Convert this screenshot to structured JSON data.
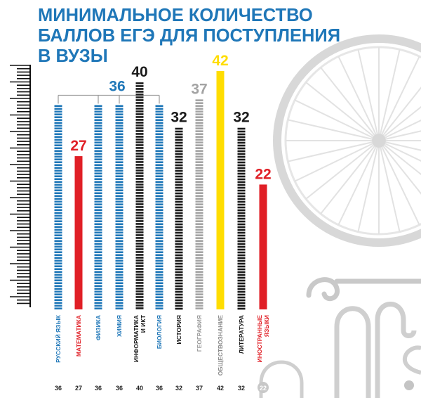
{
  "chart_data": {
    "type": "bar",
    "title_lines": [
      "МИНИМАЛЬНОЕ КОЛИЧЕСТВО",
      "БАЛЛОВ ЕГЭ ДЛЯ ПОСТУПЛЕНИЯ",
      "В ВУЗЫ"
    ],
    "group_label": "36",
    "categories": [
      {
        "name": "РУССКИЙ ЯЗЫК",
        "lines": [
          "РУССКИЙ ЯЗЫК"
        ]
      },
      {
        "name": "МАТЕМАТИКА",
        "lines": [
          "МАТЕМАТИКА"
        ]
      },
      {
        "name": "ФИЗИКА",
        "lines": [
          "ФИЗИКА"
        ]
      },
      {
        "name": "ХИМИЯ",
        "lines": [
          "ХИМИЯ"
        ]
      },
      {
        "name": "ИНФОРМАТИКА И ИКТ",
        "lines": [
          "ИНФОРМАТИКА",
          "И ИКТ"
        ]
      },
      {
        "name": "БИОЛОГИЯ",
        "lines": [
          "БИОЛОГИЯ"
        ]
      },
      {
        "name": "ИСТОРИЯ",
        "lines": [
          "ИСТОРИЯ"
        ]
      },
      {
        "name": "ГЕОГРАФИЯ",
        "lines": [
          "ГЕОГРАФИЯ"
        ]
      },
      {
        "name": "ОБЩЕСТВОЗНАНИЕ",
        "lines": [
          "ОБЩЕСТВОЗНАНИЕ"
        ]
      },
      {
        "name": "ЛИТЕРАТУРА",
        "lines": [
          "ЛИТЕРАТУРА"
        ]
      },
      {
        "name": "ИНОСТРАННЫЕ ЯЗЫКИ",
        "lines": [
          "ИНОСТРАННЫЕ",
          "ЯЗЫКИ"
        ]
      }
    ],
    "values": [
      36,
      27,
      36,
      36,
      40,
      36,
      32,
      37,
      42,
      32,
      22
    ],
    "top_labels": [
      "",
      "27",
      "",
      "",
      "40",
      "",
      "32",
      "37",
      "42",
      "32",
      "22"
    ],
    "bottom_labels": [
      "36",
      "27",
      "36",
      "36",
      "40",
      "36",
      "32",
      "37",
      "42",
      "32",
      "22"
    ],
    "bar_colors": [
      "#1f77b8",
      "#e01f26",
      "#1f77b8",
      "#1f77b8",
      "#1a1a1a",
      "#1f77b8",
      "#1a1a1a",
      "#a3a3a3",
      "#ffdd00",
      "#1a1a1a",
      "#e01f26"
    ],
    "bar_styles": [
      "striped",
      "solid",
      "striped",
      "striped",
      "striped",
      "striped",
      "striped",
      "striped",
      "solid",
      "striped",
      "solid"
    ],
    "label_colors": [
      "#1f77b8",
      "#e01f26",
      "#1f77b8",
      "#1f77b8",
      "#1a1a1a",
      "#1f77b8",
      "#1a1a1a",
      "#9a9a9a",
      "#888888",
      "#1a1a1a",
      "#e01f26"
    ],
    "top_label_colors": [
      "#1f77b8",
      "#e01f26",
      "#1f77b8",
      "#1f77b8",
      "#1a1a1a",
      "#1f77b8",
      "#1a1a1a",
      "#a3a3a3",
      "#ffdd00",
      "#1a1a1a",
      "#e01f26"
    ],
    "ylim": [
      0,
      42
    ],
    "grid": false,
    "decoration": "bicycle"
  }
}
